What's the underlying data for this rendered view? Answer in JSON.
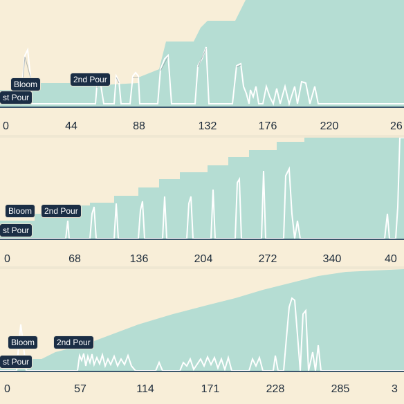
{
  "colors": {
    "background": "#f8eed8",
    "cumulative_fill": "#b5ddd3",
    "spike_stroke": "#ffffff",
    "baseline": "#3b556b",
    "label_bg": "#1b2e45",
    "label_text": "#ffffff",
    "tick_text": "#1d2b3a"
  },
  "panels": [
    {
      "labels": {
        "first_pour": "st Pour",
        "bloom": "Bloom",
        "second_pour": "2nd Pour"
      },
      "ticks": [
        "0",
        "44",
        "88",
        "132",
        "176",
        "220",
        "26"
      ]
    },
    {
      "labels": {
        "first_pour": "st Pour",
        "bloom": "Bloom",
        "second_pour": "2nd Pour"
      },
      "ticks": [
        "0",
        "68",
        "136",
        "204",
        "272",
        "340",
        "40"
      ]
    },
    {
      "labels": {
        "first_pour": "st Pour",
        "bloom": "Bloom",
        "second_pour": "2nd Pour"
      },
      "ticks": [
        "0",
        "57",
        "114",
        "171",
        "228",
        "285",
        "3"
      ]
    }
  ]
}
